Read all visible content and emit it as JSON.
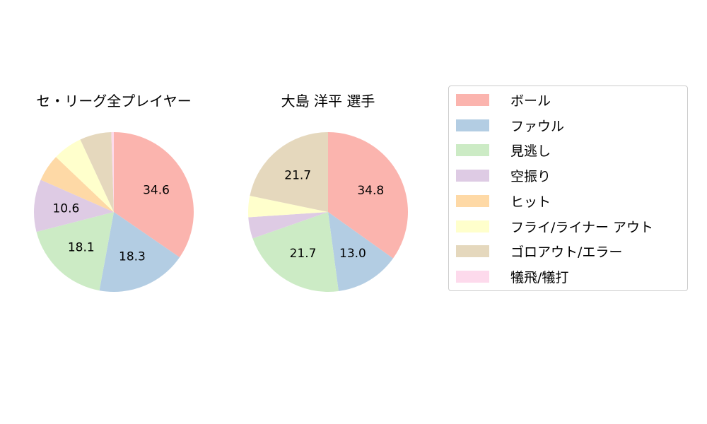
{
  "chart_data": [
    {
      "type": "pie",
      "title": "セ・リーグ全プレイヤー",
      "categories": [
        "ボール",
        "ファウル",
        "見逃し",
        "空振り",
        "ヒット",
        "フライ/ライナー アウト",
        "ゴロアウト/エラー",
        "犠飛/犠打"
      ],
      "values": [
        34.6,
        18.3,
        18.1,
        10.6,
        5.5,
        6.0,
        6.4,
        0.5
      ],
      "labels_shown": [
        "34.6",
        "18.3",
        "18.1",
        "10.6",
        "",
        "",
        "",
        ""
      ],
      "center": [
        161,
        300
      ],
      "radius": 113
    },
    {
      "type": "pie",
      "title": "大島 洋平  選手",
      "categories": [
        "ボール",
        "ファウル",
        "見逃し",
        "空振り",
        "ヒット",
        "フライ/ライナー アウト",
        "ゴロアウト/エラー",
        "犠飛/犠打"
      ],
      "values": [
        34.8,
        13.0,
        21.7,
        4.3,
        0,
        4.3,
        21.7,
        0
      ],
      "labels_shown": [
        "34.8",
        "13.0",
        "21.7",
        "",
        "",
        "",
        "21.7",
        ""
      ],
      "center": [
        464,
        300
      ],
      "radius": 113
    }
  ],
  "titles": {
    "left": "セ・リーグ全プレイヤー",
    "right": "大島 洋平  選手"
  },
  "legend": [
    {
      "label": "ボール",
      "color": "#fbb4ae"
    },
    {
      "label": "ファウル",
      "color": "#b3cde3"
    },
    {
      "label": "見逃し",
      "color": "#ccebc5"
    },
    {
      "label": "空振り",
      "color": "#decbe4"
    },
    {
      "label": "ヒット",
      "color": "#fed9a6"
    },
    {
      "label": "フライ/ライナー アウト",
      "color": "#ffffcc"
    },
    {
      "label": "ゴロアウト/エラー",
      "color": "#e5d8bd"
    },
    {
      "label": "犠飛/犠打",
      "color": "#fddaec"
    }
  ]
}
